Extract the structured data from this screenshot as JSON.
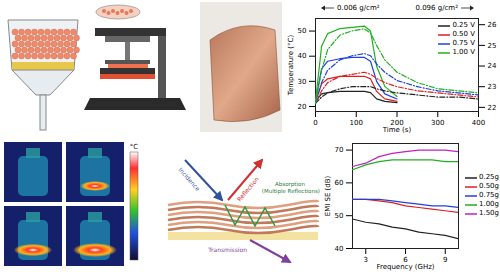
{
  "chart_data": [
    {
      "type": "line",
      "x_label": "Time (s)",
      "y_label": "Temperature (°C)",
      "annotations": [
        "0.006 g/cm²",
        "0.096 g/cm²"
      ],
      "x": [
        0,
        15,
        30,
        60,
        90,
        120,
        135,
        150,
        170,
        200,
        250,
        300,
        350,
        400
      ],
      "xlim": [
        0,
        400
      ],
      "xticks": [
        0,
        100,
        200,
        300,
        400
      ],
      "ylim": [
        18,
        55
      ],
      "yticks": [
        20,
        30,
        40,
        50
      ],
      "y2lim": [
        21.8,
        26.3
      ],
      "y2ticks": [
        22,
        23,
        24,
        25,
        26
      ],
      "grid": false,
      "legend": "upper right",
      "series": [
        {
          "name": "0.25 V",
          "color": "#222222",
          "line_style": "solid",
          "values": [
            22,
            25,
            25.5,
            26,
            26,
            26,
            25.5,
            23,
            22,
            21.5,
            null,
            null,
            null,
            null
          ]
        },
        {
          "name": "0.50 V",
          "color": "#e02020",
          "line_style": "solid",
          "values": [
            22,
            29,
            31,
            32,
            32,
            32,
            31,
            26,
            23,
            22,
            null,
            null,
            null,
            null
          ]
        },
        {
          "name": "0.75 V",
          "color": "#2040e0",
          "line_style": "solid",
          "values": [
            22,
            35,
            38,
            39,
            39.5,
            39.5,
            38,
            30,
            25,
            23,
            null,
            null,
            null,
            null
          ]
        },
        {
          "name": "1.00 V",
          "color": "#20b020",
          "line_style": "solid",
          "values": [
            22,
            44,
            49,
            51,
            51.5,
            52,
            50,
            36,
            28,
            24,
            null,
            null,
            null,
            null
          ]
        },
        {
          "name": "0.25 V",
          "color": "#222222",
          "line_style": "dashdot",
          "axis": "y2",
          "values": [
            22.2,
            22.5,
            22.7,
            22.9,
            23.0,
            23.0,
            23.0,
            22.9,
            22.8,
            22.7,
            22.6,
            22.5,
            22.5,
            22.4
          ]
        },
        {
          "name": "0.50 V",
          "color": "#e02020",
          "line_style": "dashdot",
          "axis": "y2",
          "values": [
            22.2,
            22.8,
            23.2,
            23.5,
            23.6,
            23.7,
            23.6,
            23.4,
            23.2,
            23.0,
            22.8,
            22.7,
            22.6,
            22.5
          ]
        },
        {
          "name": "0.75 V",
          "color": "#2040e0",
          "line_style": "dashdot",
          "axis": "y2",
          "values": [
            22.2,
            23.2,
            23.8,
            24.3,
            24.5,
            24.6,
            24.5,
            24.1,
            23.7,
            23.3,
            23.0,
            22.8,
            22.7,
            22.6
          ]
        },
        {
          "name": "1.00 V",
          "color": "#20b020",
          "line_style": "dashdot",
          "axis": "y2",
          "values": [
            22.2,
            23.8,
            24.8,
            25.5,
            25.7,
            25.8,
            25.6,
            25.0,
            24.3,
            23.7,
            23.2,
            22.9,
            22.8,
            22.7
          ]
        }
      ]
    },
    {
      "type": "line",
      "x_label": "Frequency (GHz)",
      "y_label": "EMI SE (dB)",
      "x": [
        2,
        3,
        4,
        5,
        6,
        7,
        8,
        9,
        10
      ],
      "xlim": [
        2,
        10
      ],
      "xticks": [
        3,
        6,
        9
      ],
      "ylim": [
        40,
        72
      ],
      "yticks": [
        40,
        50,
        60,
        70
      ],
      "grid": false,
      "legend": "right",
      "series": [
        {
          "name": "0.25g",
          "color": "#222222",
          "line_style": "solid",
          "values": [
            49,
            48,
            47.5,
            46.5,
            46,
            45,
            44.5,
            44,
            43
          ]
        },
        {
          "name": "0.50g",
          "color": "#e02020",
          "line_style": "solid",
          "values": [
            55,
            55,
            54.5,
            54,
            53,
            52.5,
            52,
            51.5,
            51
          ]
        },
        {
          "name": "0.75g",
          "color": "#2040e0",
          "line_style": "solid",
          "values": [
            55,
            55,
            55,
            54.5,
            54,
            53.5,
            53,
            53,
            52.5
          ]
        },
        {
          "name": "1.00g",
          "color": "#20b020",
          "line_style": "solid",
          "values": [
            64,
            65.5,
            66.5,
            67,
            67,
            67,
            67,
            66.5,
            66.5
          ]
        },
        {
          "name": "1.50g",
          "color": "#c020c0",
          "line_style": "solid",
          "values": [
            65,
            66,
            68,
            69,
            69.5,
            70,
            70,
            70,
            69.5
          ]
        }
      ]
    }
  ],
  "panels": {
    "thermal_images": {
      "colorbar_label": "°C"
    },
    "absorption_diagram": {
      "incidence": "Incidence",
      "reflection": "Reflection",
      "absorption": "Absorption (Multiple Reflections)",
      "transmission": "Transmission"
    }
  }
}
